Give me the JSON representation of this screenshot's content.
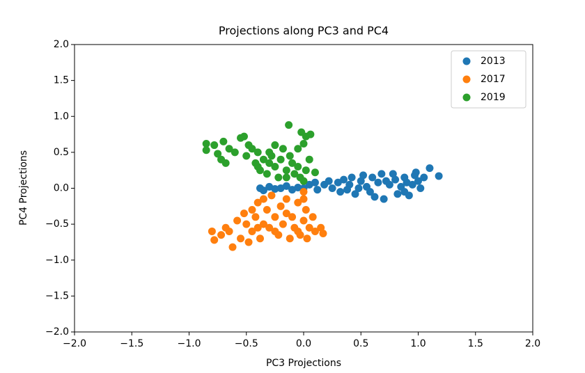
{
  "chart_data": {
    "type": "scatter",
    "title": "Projections along PC3 and PC4",
    "xlabel": "PC3 Projections",
    "ylabel": "PC4 Projections",
    "xlim": [
      -2,
      2
    ],
    "ylim": [
      -2,
      2
    ],
    "xticks": [
      {
        "value": -2,
        "label": "−2.0"
      },
      {
        "value": -1.5,
        "label": "−1.5"
      },
      {
        "value": -1,
        "label": "−1.0"
      },
      {
        "value": -0.5,
        "label": "−0.5"
      },
      {
        "value": 0,
        "label": "0.0"
      },
      {
        "value": 0.5,
        "label": "0.5"
      },
      {
        "value": 1,
        "label": "1.0"
      },
      {
        "value": 1.5,
        "label": "1.5"
      },
      {
        "value": 2,
        "label": "2.0"
      }
    ],
    "yticks": [
      {
        "value": -2,
        "label": "−2.0"
      },
      {
        "value": -1.5,
        "label": "−1.5"
      },
      {
        "value": -1,
        "label": "−1.0"
      },
      {
        "value": -0.5,
        "label": "−0.5"
      },
      {
        "value": 0,
        "label": "0.0"
      },
      {
        "value": 0.5,
        "label": "0.5"
      },
      {
        "value": 1,
        "label": "1.0"
      },
      {
        "value": 1.5,
        "label": "1.5"
      },
      {
        "value": 2,
        "label": "2.0"
      }
    ],
    "legend": "upper right",
    "series": [
      {
        "name": "2013",
        "color": "#1f77b4",
        "x": [
          -0.38,
          -0.35,
          -0.3,
          -0.25,
          -0.2,
          -0.15,
          -0.1,
          -0.05,
          0.0,
          0.05,
          0.1,
          0.12,
          0.18,
          0.22,
          0.25,
          0.3,
          0.32,
          0.35,
          0.4,
          0.42,
          0.45,
          0.5,
          0.52,
          0.55,
          0.6,
          0.62,
          0.65,
          0.68,
          0.7,
          0.72,
          0.75,
          0.78,
          0.8,
          0.82,
          0.85,
          0.88,
          0.9,
          0.92,
          0.95,
          0.97,
          1.0,
          1.02,
          1.05,
          1.1,
          1.18,
          0.58,
          0.48,
          0.38,
          0.88,
          0.98
        ],
        "values": [
          0.0,
          -0.03,
          0.02,
          -0.01,
          0.0,
          0.03,
          -0.02,
          0.01,
          0.0,
          0.05,
          0.08,
          -0.02,
          0.05,
          0.1,
          0.0,
          0.08,
          -0.05,
          0.12,
          0.05,
          0.15,
          -0.08,
          0.1,
          0.18,
          0.02,
          0.15,
          -0.12,
          0.08,
          0.2,
          -0.15,
          0.1,
          0.05,
          0.2,
          0.12,
          -0.08,
          0.02,
          0.15,
          0.08,
          -0.1,
          0.05,
          0.18,
          0.1,
          0.0,
          0.15,
          0.28,
          0.17,
          -0.05,
          0.0,
          -0.02,
          -0.05,
          0.22
        ]
      },
      {
        "name": "2017",
        "color": "#ff7f0e",
        "x": [
          -0.8,
          -0.78,
          -0.72,
          -0.65,
          -0.62,
          -0.55,
          -0.5,
          -0.52,
          -0.48,
          -0.45,
          -0.42,
          -0.4,
          -0.38,
          -0.35,
          -0.32,
          -0.3,
          -0.28,
          -0.25,
          -0.22,
          -0.2,
          -0.18,
          -0.15,
          -0.12,
          -0.1,
          -0.08,
          -0.05,
          -0.03,
          0.0,
          0.0,
          0.02,
          0.05,
          0.08,
          0.1,
          0.15,
          0.17,
          -0.58,
          -0.68,
          -0.45,
          -0.25,
          -0.15,
          -0.05,
          -0.35,
          0.0,
          0.03,
          -0.4
        ],
        "values": [
          -0.6,
          -0.72,
          -0.65,
          -0.6,
          -0.82,
          -0.7,
          -0.5,
          -0.35,
          -0.75,
          -0.6,
          -0.4,
          -0.2,
          -0.7,
          -0.5,
          -0.3,
          -0.55,
          -0.1,
          -0.4,
          -0.65,
          -0.25,
          -0.5,
          -0.15,
          -0.7,
          -0.4,
          -0.55,
          -0.2,
          -0.65,
          -0.05,
          -0.45,
          -0.3,
          -0.55,
          -0.4,
          -0.6,
          -0.55,
          -0.63,
          -0.45,
          -0.55,
          -0.3,
          -0.6,
          -0.35,
          -0.6,
          -0.15,
          -0.15,
          -0.7,
          -0.55
        ]
      },
      {
        "name": "2019",
        "color": "#2ca02c",
        "x": [
          -0.85,
          -0.85,
          -0.78,
          -0.75,
          -0.72,
          -0.7,
          -0.68,
          -0.65,
          -0.6,
          -0.55,
          -0.52,
          -0.5,
          -0.48,
          -0.45,
          -0.42,
          -0.4,
          -0.38,
          -0.35,
          -0.32,
          -0.3,
          -0.28,
          -0.25,
          -0.22,
          -0.2,
          -0.18,
          -0.15,
          -0.12,
          -0.1,
          -0.08,
          -0.05,
          -0.03,
          0.0,
          0.02,
          -0.13,
          -0.02,
          0.02,
          0.0,
          0.06,
          -0.05,
          0.05,
          0.1,
          -0.25,
          -0.3,
          -0.4,
          -0.15
        ],
        "values": [
          0.62,
          0.53,
          0.6,
          0.48,
          0.4,
          0.65,
          0.35,
          0.55,
          0.5,
          0.7,
          0.72,
          0.45,
          0.6,
          0.55,
          0.35,
          0.5,
          0.25,
          0.4,
          0.2,
          0.35,
          0.45,
          0.3,
          0.15,
          0.4,
          0.55,
          0.25,
          0.45,
          0.35,
          0.2,
          0.3,
          0.15,
          0.1,
          0.25,
          0.88,
          0.78,
          0.72,
          0.62,
          0.75,
          0.55,
          0.4,
          0.22,
          0.6,
          0.5,
          0.3,
          0.15
        ]
      }
    ]
  }
}
